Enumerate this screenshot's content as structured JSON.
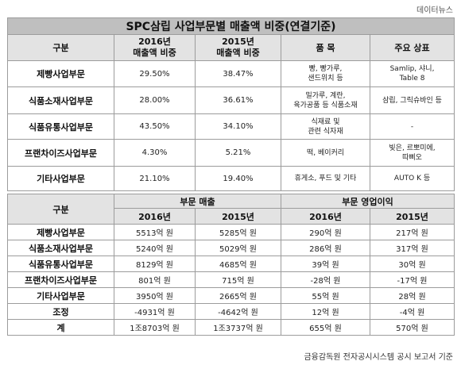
{
  "source_label": "데이터뉴스",
  "title": "SPC삼립 사업부문별 매출액 비중(연결기준)",
  "table1": {
    "headers": {
      "category": "구분",
      "y2016_line1": "2016년",
      "y2016_line2": "매출액 비중",
      "y2015_line1": "2015년",
      "y2015_line2": "매출액 비중",
      "items": "품 목",
      "brands": "주요 상표"
    },
    "rows": [
      {
        "name": "제빵사업부문",
        "share2016": "29.50%",
        "share2015": "38.47%",
        "items_l1": "빵, 빵가루,",
        "items_l2": "샌드위치 등",
        "brands_l1": "Samlip, 샤니,",
        "brands_l2": "Table 8"
      },
      {
        "name": "식품소재사업부문",
        "share2016": "28.00%",
        "share2015": "36.61%",
        "items_l1": "밀가루, 계란,",
        "items_l2": "육가공품 등 식품소재",
        "brands_l1": "삼립, 그릭슈바인 등",
        "brands_l2": ""
      },
      {
        "name": "식품유통사업부문",
        "share2016": "43.50%",
        "share2015": "34.10%",
        "items_l1": "식재료 및",
        "items_l2": "관련 식자재",
        "brands_l1": "-",
        "brands_l2": ""
      },
      {
        "name": "프랜차이즈사업부문",
        "share2016": "4.30%",
        "share2015": "5.21%",
        "items_l1": "떡, 베이커리",
        "items_l2": "",
        "brands_l1": "빚은, 르뽀미에,",
        "brands_l2": "따삐오"
      },
      {
        "name": "기타사업부문",
        "share2016": "21.10%",
        "share2015": "19.40%",
        "items_l1": "휴게소, 푸드 및 기타",
        "items_l2": "",
        "brands_l1": "AUTO K 등",
        "brands_l2": ""
      }
    ]
  },
  "table2": {
    "headers": {
      "category": "구분",
      "sales": "부문 매출",
      "profit": "부문 영업이익",
      "y2016": "2016년",
      "y2015": "2015년"
    },
    "rows": [
      {
        "name": "제빵사업부문",
        "sales2016": "5513억 원",
        "sales2015": "5285억 원",
        "op2016": "290억 원",
        "op2015": "217억 원"
      },
      {
        "name": "식품소재사업부문",
        "sales2016": "5240억 원",
        "sales2015": "5029억 원",
        "op2016": "286억 원",
        "op2015": "317억 원"
      },
      {
        "name": "식품유통사업부문",
        "sales2016": "8129억 원",
        "sales2015": "4685억 원",
        "op2016": "39억 원",
        "op2015": "30억 원"
      },
      {
        "name": "프랜차이즈사업부문",
        "sales2016": "801억 원",
        "sales2015": "715억 원",
        "op2016": "-28억 원",
        "op2015": "-17억 원"
      },
      {
        "name": "기타사업부문",
        "sales2016": "3950억 원",
        "sales2015": "2665억 원",
        "op2016": "55억 원",
        "op2015": "28억 원"
      },
      {
        "name": "조정",
        "sales2016": "-4931억 원",
        "sales2015": "-4642억 원",
        "op2016": "12억 원",
        "op2015": "-4억 원"
      },
      {
        "name": "계",
        "sales2016": "1조8703억 원",
        "sales2015": "1조3737억 원",
        "op2016": "655억 원",
        "op2015": "570억 원"
      }
    ]
  },
  "footer": "금융감독원 전자공시시스템 공시 보고서 기준"
}
